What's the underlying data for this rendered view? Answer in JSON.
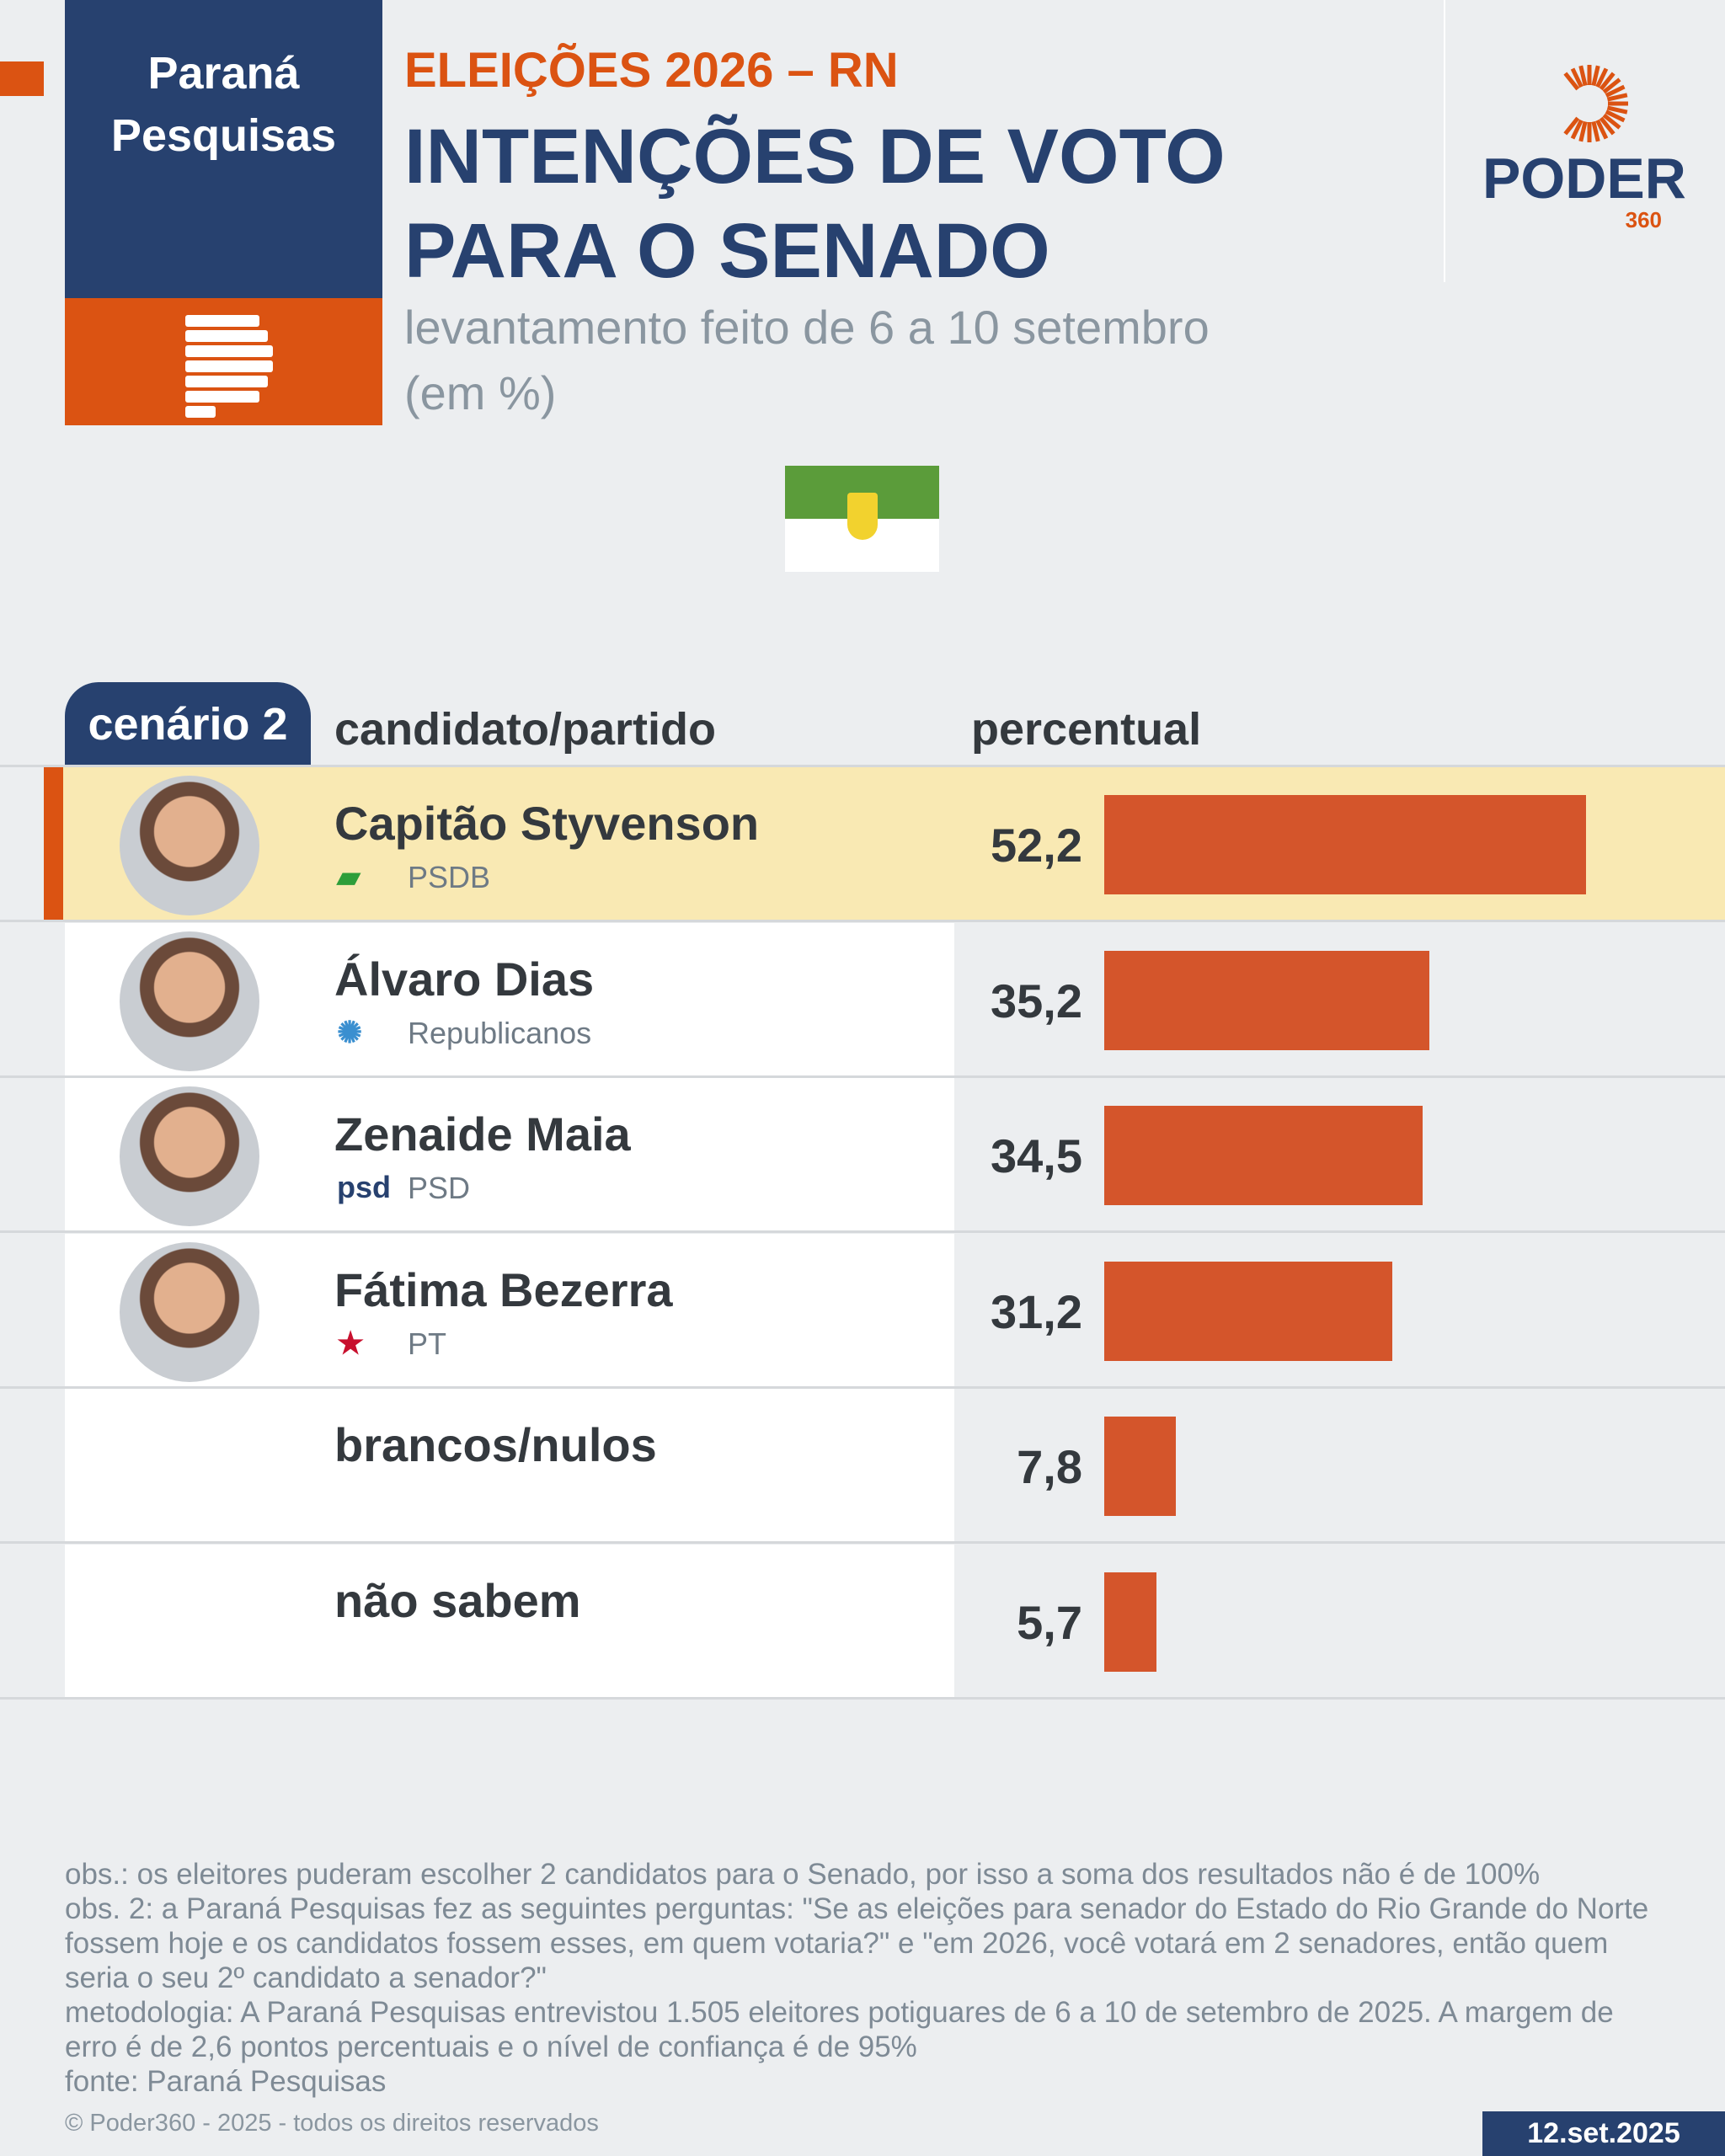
{
  "brand": {
    "name_line1": "Paraná",
    "name_line2": "Pesquisas"
  },
  "header": {
    "kicker": "ELEIÇÕES 2026 – RN",
    "title_line1": "INTENÇÕES DE VOTO",
    "title_line2": "PARA O SENADO",
    "subtitle_line1": "levantamento feito de 6 a 10 setembro",
    "subtitle_line2": "(em %)"
  },
  "logo": {
    "word": "PODER",
    "number": "360"
  },
  "table": {
    "scenario": "cenário 2",
    "col_candidate": "candidato/partido",
    "col_percent": "percentual"
  },
  "colors": {
    "blue": "#27416f",
    "orange": "#db5312",
    "bar": "#d4552b",
    "highlight": "#f9e9b3"
  },
  "chart_data": {
    "type": "bar",
    "orientation": "horizontal",
    "title": "INTENÇÕES DE VOTO PARA O SENADO",
    "unit": "%",
    "categories": [
      "Capitão Styvenson",
      "Álvaro Dias",
      "Zenaide Maia",
      "Fátima Bezerra",
      "brancos/nulos",
      "não sabem"
    ],
    "parties": [
      "PSDB",
      "Republicanos",
      "PSD",
      "PT",
      "",
      ""
    ],
    "values": [
      52.2,
      35.2,
      34.5,
      31.2,
      7.8,
      5.7
    ],
    "labels": [
      "52,2",
      "35,2",
      "34,5",
      "31,2",
      "7,8",
      "5,7"
    ]
  },
  "footer": {
    "notes": [
      "obs.: os eleitores puderam escolher 2 candidatos para o Senado, por isso a soma dos resultados não é de 100%",
      "obs. 2: a Paraná Pesquisas fez as seguintes perguntas: \"Se as eleições para senador do Estado do Rio Grande do Norte fossem hoje e os candidatos fossem esses, em quem votaria?\" e \"em 2026, você votará em 2 senadores, então quem seria o seu 2º candidato a senador?\"",
      "metodologia: A Paraná Pesquisas entrevistou 1.505 eleitores potiguares de 6 a 10 de setembro de 2025. A margem de erro é de 2,6 pontos percentuais e o nível de confiança é de 95%",
      "fonte: Paraná Pesquisas"
    ],
    "copyright": "© Poder360 - 2025 - todos os direitos reservados",
    "date": "12.set.2025"
  }
}
